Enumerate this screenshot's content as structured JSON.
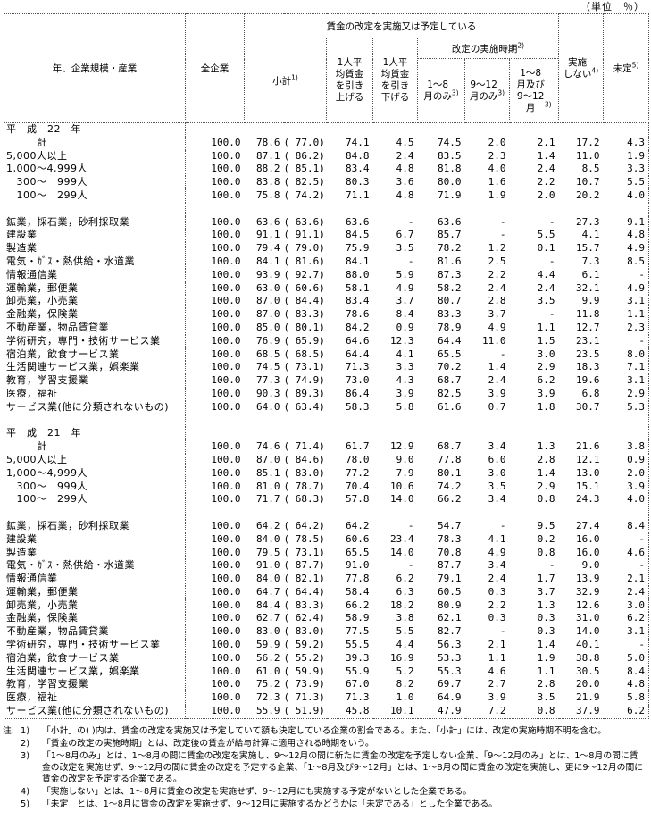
{
  "unit_label": "（単位　％）",
  "header": {
    "row_col": "年、企業規模・産業",
    "all_companies": "全企業",
    "group": "賃金の改定を実施又は予定している",
    "subtotal": "小計",
    "subtotal_sup": "1)",
    "raise": "1人平\n均賃金\nを引き\n上げる",
    "lower": "1人平\n均賃金\nを引き\n下げる",
    "timing": "改定の実施時期",
    "timing_sup": "2)",
    "t1": "1〜8\n月のみ",
    "t1_sup": "3)",
    "t2": "9〜12\n月のみ",
    "t2_sup": "3)",
    "t3": "1〜8\n月及び\n9〜12\n月",
    "t3_sup": "3)",
    "no_impl": "実施\nしない",
    "no_impl_sup": "4)",
    "undecided": "未定",
    "undecided_sup": "5)"
  },
  "rows": [
    {
      "h": "平　成　22　年"
    },
    {
      "l": "　　　計",
      "v": [
        "100.0",
        "78.6",
        "( 77.0)",
        "74.1",
        "4.5",
        "74.5",
        "2.0",
        "2.1",
        "17.2",
        "4.3"
      ]
    },
    {
      "l": "5,000人以上",
      "v": [
        "100.0",
        "87.1",
        "( 86.2)",
        "84.8",
        "2.4",
        "83.5",
        "2.3",
        "1.4",
        "11.0",
        "1.9"
      ]
    },
    {
      "l": "1,000〜4,999人",
      "v": [
        "100.0",
        "88.2",
        "( 85.1)",
        "83.4",
        "4.8",
        "81.8",
        "4.0",
        "2.4",
        "8.5",
        "3.3"
      ]
    },
    {
      "l": "　300〜　999人",
      "v": [
        "100.0",
        "83.8",
        "( 82.5)",
        "80.3",
        "3.6",
        "80.0",
        "1.6",
        "2.2",
        "10.7",
        "5.5"
      ]
    },
    {
      "l": "　100〜　299人",
      "v": [
        "100.0",
        "75.8",
        "( 74.2)",
        "71.1",
        "4.8",
        "71.9",
        "1.9",
        "2.0",
        "20.2",
        "4.0"
      ]
    },
    {
      "s": true
    },
    {
      "l": "鉱業，採石業，砂利採取業",
      "v": [
        "100.0",
        "63.6",
        "( 63.6)",
        "63.6",
        "-",
        "63.6",
        "-",
        "-",
        "27.3",
        "9.1"
      ]
    },
    {
      "l": "建設業",
      "v": [
        "100.0",
        "91.1",
        "( 91.1)",
        "84.5",
        "6.7",
        "85.7",
        "-",
        "5.5",
        "4.1",
        "4.8"
      ]
    },
    {
      "l": "製造業",
      "v": [
        "100.0",
        "79.4",
        "( 79.0)",
        "75.9",
        "3.5",
        "78.2",
        "1.2",
        "0.1",
        "15.7",
        "4.9"
      ]
    },
    {
      "l": "電気・ｶﾞｽ・熱供給・水道業",
      "v": [
        "100.0",
        "84.1",
        "( 81.6)",
        "84.1",
        "-",
        "81.6",
        "2.5",
        "-",
        "7.3",
        "8.5"
      ]
    },
    {
      "l": "情報通信業",
      "v": [
        "100.0",
        "93.9",
        "( 92.7)",
        "88.0",
        "5.9",
        "87.3",
        "2.2",
        "4.4",
        "6.1",
        "-"
      ]
    },
    {
      "l": "運輸業，郵便業",
      "v": [
        "100.0",
        "63.0",
        "( 60.6)",
        "58.1",
        "4.9",
        "58.2",
        "2.4",
        "2.4",
        "32.1",
        "4.9"
      ]
    },
    {
      "l": "卸売業，小売業",
      "v": [
        "100.0",
        "87.0",
        "( 84.4)",
        "83.4",
        "3.7",
        "80.7",
        "2.8",
        "3.5",
        "9.9",
        "3.1"
      ]
    },
    {
      "l": "金融業，保険業",
      "v": [
        "100.0",
        "87.0",
        "( 83.3)",
        "78.6",
        "8.4",
        "83.3",
        "3.7",
        "-",
        "11.8",
        "1.1"
      ]
    },
    {
      "l": "不動産業，物品賃貸業",
      "v": [
        "100.0",
        "85.0",
        "( 80.1)",
        "84.2",
        "0.9",
        "78.9",
        "4.9",
        "1.1",
        "12.7",
        "2.3"
      ]
    },
    {
      "l": "学術研究，専門・技術サービス業",
      "v": [
        "100.0",
        "76.9",
        "( 65.9)",
        "64.6",
        "12.3",
        "64.4",
        "11.0",
        "1.5",
        "23.1",
        "-"
      ]
    },
    {
      "l": "宿泊業，飲食サービス業",
      "v": [
        "100.0",
        "68.5",
        "( 68.5)",
        "64.4",
        "4.1",
        "65.5",
        "-",
        "3.0",
        "23.5",
        "8.0"
      ]
    },
    {
      "l": "生活関連サービス業，娯楽業",
      "v": [
        "100.0",
        "74.5",
        "( 73.1)",
        "71.3",
        "3.3",
        "70.2",
        "1.4",
        "2.9",
        "18.3",
        "7.1"
      ]
    },
    {
      "l": "教育，学習支援業",
      "v": [
        "100.0",
        "77.3",
        "( 74.9)",
        "73.0",
        "4.3",
        "68.7",
        "2.4",
        "6.2",
        "19.6",
        "3.1"
      ]
    },
    {
      "l": "医療，福祉",
      "v": [
        "100.0",
        "90.3",
        "( 89.3)",
        "86.4",
        "3.9",
        "82.5",
        "3.9",
        "3.9",
        "6.8",
        "2.9"
      ]
    },
    {
      "l": "サービス業(他に分類されないもの)",
      "v": [
        "100.0",
        "64.0",
        "( 63.4)",
        "58.3",
        "5.8",
        "61.6",
        "0.7",
        "1.8",
        "30.7",
        "5.3"
      ]
    },
    {
      "s": true
    },
    {
      "h": "平　成　21　年"
    },
    {
      "l": "　　　計",
      "v": [
        "100.0",
        "74.6",
        "( 71.4)",
        "61.7",
        "12.9",
        "68.7",
        "3.4",
        "1.3",
        "21.6",
        "3.8"
      ]
    },
    {
      "l": "5,000人以上",
      "v": [
        "100.0",
        "87.0",
        "( 84.6)",
        "78.0",
        "9.0",
        "77.8",
        "6.0",
        "2.8",
        "12.1",
        "0.9"
      ]
    },
    {
      "l": "1,000〜4,999人",
      "v": [
        "100.0",
        "85.1",
        "( 83.0)",
        "77.2",
        "7.9",
        "80.1",
        "3.0",
        "1.4",
        "13.0",
        "2.0"
      ]
    },
    {
      "l": "　300〜　999人",
      "v": [
        "100.0",
        "81.0",
        "( 78.7)",
        "70.4",
        "10.6",
        "74.2",
        "3.5",
        "2.9",
        "15.1",
        "3.9"
      ]
    },
    {
      "l": "　100〜　299人",
      "v": [
        "100.0",
        "71.7",
        "( 68.3)",
        "57.8",
        "14.0",
        "66.2",
        "3.4",
        "0.8",
        "24.3",
        "4.0"
      ]
    },
    {
      "s": true
    },
    {
      "l": "鉱業，採石業，砂利採取業",
      "v": [
        "100.0",
        "64.2",
        "( 64.2)",
        "64.2",
        "-",
        "54.7",
        "-",
        "9.5",
        "27.4",
        "8.4"
      ]
    },
    {
      "l": "建設業",
      "v": [
        "100.0",
        "84.0",
        "( 78.5)",
        "60.6",
        "23.4",
        "78.3",
        "4.1",
        "0.2",
        "16.0",
        "-"
      ]
    },
    {
      "l": "製造業",
      "v": [
        "100.0",
        "79.5",
        "( 73.1)",
        "65.5",
        "14.0",
        "70.8",
        "4.9",
        "0.8",
        "16.0",
        "4.6"
      ]
    },
    {
      "l": "電気・ｶﾞｽ・熱供給・水道業",
      "v": [
        "100.0",
        "91.0",
        "( 87.7)",
        "91.0",
        "-",
        "87.7",
        "3.4",
        "-",
        "9.0",
        "-"
      ]
    },
    {
      "l": "情報通信業",
      "v": [
        "100.0",
        "84.0",
        "( 82.1)",
        "77.8",
        "6.2",
        "79.1",
        "2.4",
        "1.7",
        "13.9",
        "2.1"
      ]
    },
    {
      "l": "運輸業，郵便業",
      "v": [
        "100.0",
        "64.7",
        "( 64.4)",
        "58.4",
        "6.3",
        "60.5",
        "0.3",
        "3.7",
        "32.9",
        "2.4"
      ]
    },
    {
      "l": "卸売業，小売業",
      "v": [
        "100.0",
        "84.4",
        "( 83.3)",
        "66.2",
        "18.2",
        "80.9",
        "2.2",
        "1.3",
        "12.6",
        "3.0"
      ]
    },
    {
      "l": "金融業，保険業",
      "v": [
        "100.0",
        "62.7",
        "( 62.4)",
        "58.9",
        "3.8",
        "62.1",
        "0.3",
        "0.3",
        "31.0",
        "6.2"
      ]
    },
    {
      "l": "不動産業，物品賃貸業",
      "v": [
        "100.0",
        "83.0",
        "( 83.0)",
        "77.5",
        "5.5",
        "82.7",
        "-",
        "0.3",
        "14.0",
        "3.1"
      ]
    },
    {
      "l": "学術研究，専門・技術サービス業",
      "v": [
        "100.0",
        "59.9",
        "( 59.2)",
        "55.5",
        "4.4",
        "56.3",
        "2.1",
        "1.4",
        "40.1",
        "-"
      ]
    },
    {
      "l": "宿泊業，飲食サービス業",
      "v": [
        "100.0",
        "56.2",
        "( 55.2)",
        "39.3",
        "16.9",
        "53.3",
        "1.1",
        "1.9",
        "38.8",
        "5.0"
      ]
    },
    {
      "l": "生活関連サービス業，娯楽業",
      "v": [
        "100.0",
        "61.0",
        "( 59.9)",
        "55.9",
        "5.2",
        "55.3",
        "4.6",
        "1.1",
        "30.5",
        "8.4"
      ]
    },
    {
      "l": "教育，学習支援業",
      "v": [
        "100.0",
        "75.2",
        "( 73.9)",
        "67.0",
        "8.2",
        "69.7",
        "2.7",
        "2.8",
        "20.0",
        "4.8"
      ]
    },
    {
      "l": "医療，福祉",
      "v": [
        "100.0",
        "72.3",
        "( 71.3)",
        "71.3",
        "1.0",
        "64.9",
        "3.9",
        "3.5",
        "21.9",
        "5.8"
      ]
    },
    {
      "l": "サービス業(他に分類されないもの)",
      "v": [
        "100.0",
        "55.9",
        "( 51.9)",
        "45.8",
        "10.1",
        "47.9",
        "7.2",
        "0.8",
        "37.9",
        "6.2"
      ]
    }
  ],
  "notes": {
    "prefix": "注:",
    "items": [
      {
        "no": "1)",
        "text": "「小計」の( )内は、賃金の改定を実施又は予定していて額も決定している企業の割合である。また、「小計」には、改定の実施時期不明を含む。"
      },
      {
        "no": "2)",
        "text": "「賃金の改定の実施時期」とは、改定後の賃金が給与計算に適用される時期をいう。"
      },
      {
        "no": "3)",
        "text": "「1〜8月のみ」とは、1〜8月の間に賃金の改定を実施し、9〜12月の間に新たに賃金の改定を予定しない企業、「9〜12月のみ」とは、1〜8月の間に賃金の改定を実施せず、9〜12月の間に賃金の改定を予定する企業、「1〜8月及び9〜12月」とは、1〜8月の間に賃金の改定を実施し、更に9〜12月の間に賃金の改定を予定する企業である。"
      },
      {
        "no": "4)",
        "text": "「実施しない」とは、1〜8月に賃金の改定を実施せず、9〜12月にも実施する予定がないとした企業である。"
      },
      {
        "no": "5)",
        "text": "「未定」とは、1〜8月に賃金の改定を実施せず、9〜12月に実施するかどうかは「未定である」とした企業である。"
      }
    ]
  }
}
